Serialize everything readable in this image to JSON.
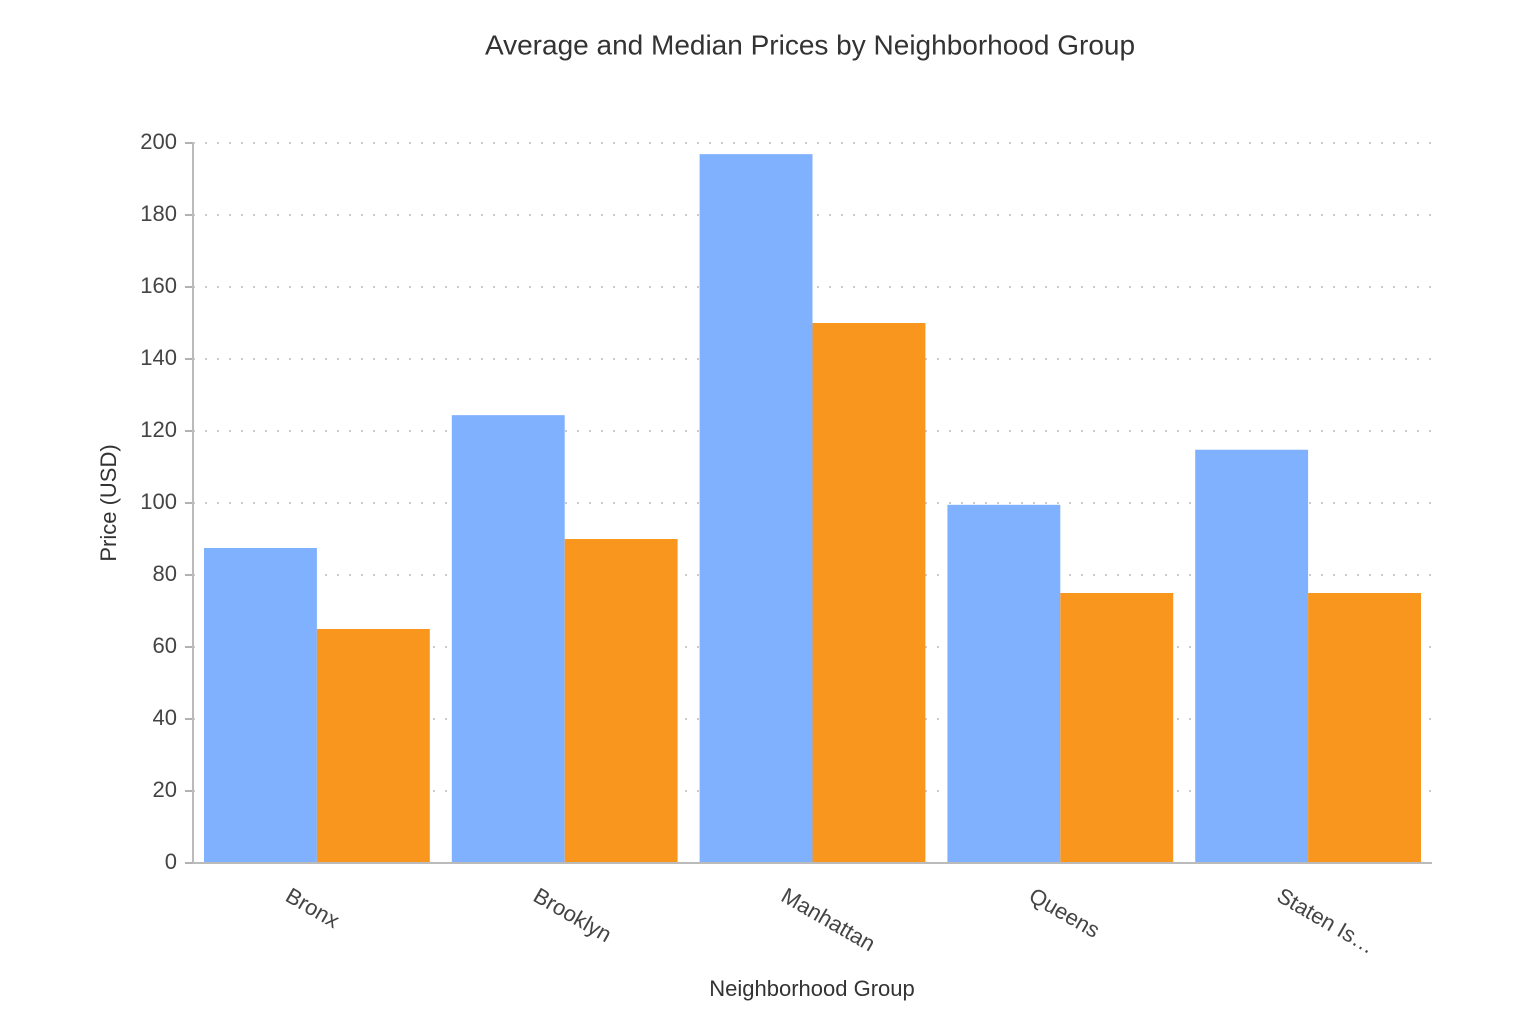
{
  "chart_data": {
    "type": "bar",
    "title": "Average and Median Prices by Neighborhood Group",
    "x_label": "Neighborhood Group",
    "y_label": "Price (USD)",
    "categories": [
      "Bronx",
      "Brooklyn",
      "Manhattan",
      "Queens",
      "Staten Is…"
    ],
    "series": [
      {
        "color": "#80b1ff",
        "values": [
          87.5,
          124.4,
          196.9,
          99.5,
          114.8
        ]
      },
      {
        "color": "#f8961e",
        "values": [
          65,
          90,
          150,
          75,
          75
        ]
      }
    ],
    "ylim": [
      0,
      200
    ],
    "yticks": [
      0,
      20,
      40,
      60,
      80,
      100,
      120,
      140,
      160,
      180,
      200
    ],
    "grid": true
  }
}
